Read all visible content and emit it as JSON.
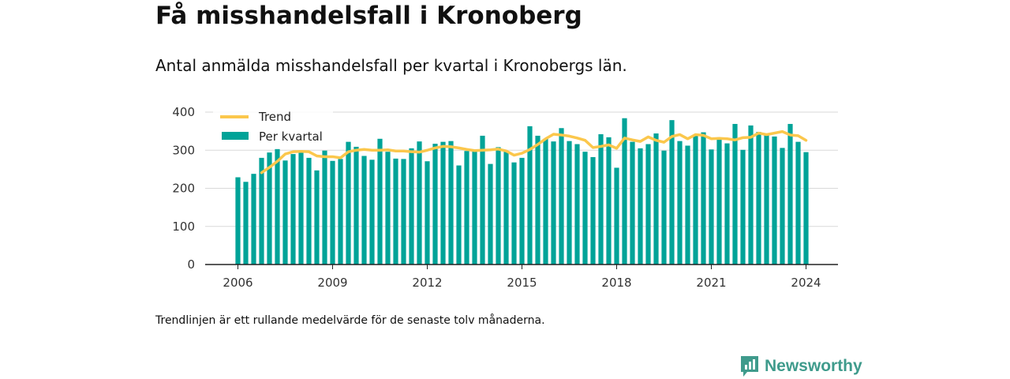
{
  "title": "Få misshandelsfall i Kronoberg",
  "subtitle": "Antal anmälda misshandelsfall per kvartal i Kronobergs län.",
  "footnote": "Trendlinjen är ett rullande medelvärde för de senaste tolv månaderna.",
  "brand": "Newsworthy",
  "chart_data": {
    "type": "bar",
    "ylim": [
      0,
      400
    ],
    "yticks": [
      0,
      100,
      200,
      300,
      400
    ],
    "xticks": [
      {
        "label": "2006",
        "x": 2006.0
      },
      {
        "label": "2009",
        "x": 2009.0
      },
      {
        "label": "2012",
        "x": 2012.0
      },
      {
        "label": "2015",
        "x": 2015.0
      },
      {
        "label": "2018",
        "x": 2018.0
      },
      {
        "label": "2021",
        "x": 2021.0
      },
      {
        "label": "2024",
        "x": 2024.0
      }
    ],
    "grid": true,
    "legend_position": "top-left",
    "colors": {
      "bars": "#00a398",
      "trend": "#fbc74c"
    },
    "series": [
      {
        "name": "Per kvartal",
        "kind": "bar",
        "start_year": 2006,
        "start_quarter": 1,
        "values": [
          229,
          217,
          238,
          280,
          294,
          305,
          273,
          290,
          297,
          280,
          247,
          299,
          272,
          277,
          322,
          309,
          285,
          275,
          330,
          296,
          278,
          277,
          305,
          323,
          271,
          317,
          322,
          324,
          260,
          298,
          300,
          338,
          264,
          308,
          298,
          268,
          280,
          363,
          338,
          330,
          323,
          358,
          324,
          316,
          296,
          282,
          342,
          334,
          254,
          384,
          322,
          305,
          316,
          344,
          299,
          379,
          324,
          312,
          340,
          347,
          302,
          330,
          318,
          369,
          301,
          365,
          348,
          343,
          336,
          306,
          369,
          322,
          295
        ],
        "labels": [
          "2006 K1",
          "2006 K2",
          "2006 K3",
          "2006 K4",
          "2007 K1",
          "2007 K2",
          "2007 K3",
          "2007 K4",
          "2008 K1",
          "2008 K2",
          "2008 K3",
          "2008 K4",
          "2009 K1",
          "2009 K2",
          "2009 K3",
          "2009 K4",
          "2010 K1",
          "2010 K2",
          "2010 K3",
          "2010 K4",
          "2011 K1",
          "2011 K2",
          "2011 K3",
          "2011 K4",
          "2012 K1",
          "2012 K2",
          "2012 K3",
          "2012 K4",
          "2013 K1",
          "2013 K2",
          "2013 K3",
          "2013 K4",
          "2014 K1",
          "2014 K2",
          "2014 K3",
          "2014 K4",
          "2015 K1",
          "2015 K2",
          "2015 K3",
          "2015 K4",
          "2016 K1",
          "2016 K2",
          "2016 K3",
          "2016 K4",
          "2017 K1",
          "2017 K2",
          "2017 K3",
          "2017 K4",
          "2018 K1",
          "2018 K2",
          "2018 K3",
          "2018 K4",
          "2019 K1",
          "2019 K2",
          "2019 K3",
          "2019 K4",
          "2020 K1",
          "2020 K2",
          "2020 K3",
          "2020 K4",
          "2021 K1",
          "2021 K2",
          "2021 K3",
          "2021 K4",
          "2022 K1",
          "2022 K2",
          "2022 K3",
          "2022 K4",
          "2023 K1",
          "2023 K2",
          "2023 K3",
          "2023 K4",
          "2024 K1"
        ]
      },
      {
        "name": "Trend",
        "kind": "line",
        "x": [
          2006.75,
          2007.0,
          2007.25,
          2007.5,
          2007.75,
          2008.0,
          2008.25,
          2008.5,
          2008.75,
          2009.0,
          2009.25,
          2009.5,
          2009.75,
          2010.0,
          2010.25,
          2010.5,
          2010.75,
          2011.0,
          2011.25,
          2011.5,
          2011.75,
          2012.0,
          2012.25,
          2012.5,
          2012.75,
          2013.0,
          2013.25,
          2013.5,
          2013.75,
          2014.0,
          2014.25,
          2014.5,
          2014.75,
          2015.0,
          2015.25,
          2015.5,
          2015.75,
          2016.0,
          2016.25,
          2016.5,
          2016.75,
          2017.0,
          2017.25,
          2017.5,
          2017.75,
          2018.0,
          2018.25,
          2018.5,
          2018.75,
          2019.0,
          2019.25,
          2019.5,
          2019.75,
          2020.0,
          2020.25,
          2020.5,
          2020.75,
          2021.0,
          2021.25,
          2021.5,
          2021.75,
          2022.0,
          2022.25,
          2022.5,
          2022.75,
          2023.0,
          2023.25,
          2023.5,
          2023.75,
          2024.0
        ],
        "values": [
          241,
          255,
          271,
          290,
          296,
          297,
          296,
          285,
          283,
          283,
          280,
          296,
          300,
          302,
          300,
          300,
          301,
          298,
          298,
          296,
          295,
          300,
          306,
          310,
          309,
          306,
          302,
          299,
          300,
          301,
          303,
          298,
          287,
          292,
          302,
          315,
          330,
          342,
          340,
          337,
          332,
          326,
          307,
          310,
          314,
          305,
          332,
          327,
          323,
          335,
          326,
          321,
          336,
          341,
          330,
          341,
          339,
          330,
          331,
          330,
          327,
          333,
          334,
          345,
          341,
          345,
          349,
          340,
          338,
          326
        ]
      }
    ]
  }
}
